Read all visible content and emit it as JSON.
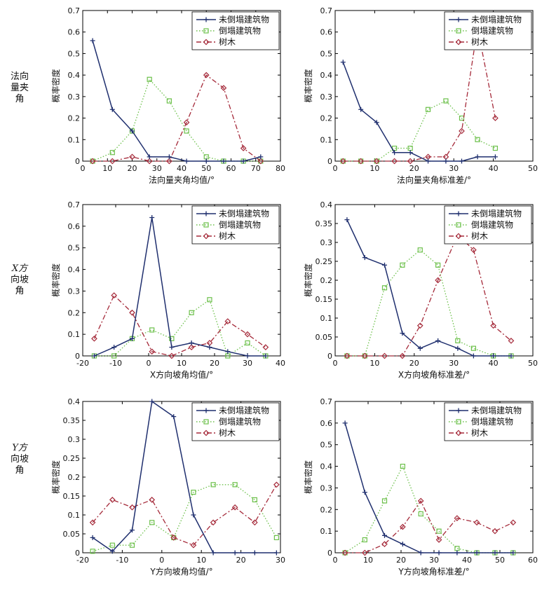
{
  "row_labels": [
    {
      "l1": "法向",
      "l2": "量夹",
      "l3": "角"
    },
    {
      "l1": "X方",
      "l2": "向坡",
      "l3": "角"
    },
    {
      "l1": "Y方",
      "l2": "向坡",
      "l3": "角"
    }
  ],
  "legend": [
    "未倒塌建筑物",
    "倒塌建筑物",
    "树木"
  ],
  "colors": {
    "series1": "#1f2f6e",
    "series2": "#6cc04a",
    "series3": "#a52a3a"
  },
  "chart_data": [
    {
      "type": "line",
      "xlabel": "法向量夹角均值/°",
      "ylabel": "概率密度",
      "xlim": [
        0,
        80
      ],
      "ylim": [
        0,
        0.7
      ],
      "xticks": [
        0,
        10,
        20,
        30,
        40,
        50,
        60,
        70,
        80
      ],
      "yticks": [
        0,
        0.1,
        0.2,
        0.3,
        0.4,
        0.5,
        0.6,
        0.7
      ],
      "grid": false,
      "legend_position": "top-right",
      "series": [
        {
          "name": "未倒塌建筑物",
          "x": [
            4,
            12,
            20,
            27,
            35,
            42,
            50,
            57,
            65,
            72
          ],
          "y": [
            0.56,
            0.24,
            0.14,
            0.02,
            0.02,
            0,
            0,
            0,
            0,
            0.02
          ]
        },
        {
          "name": "倒塌建筑物",
          "x": [
            4,
            12,
            20,
            27,
            35,
            42,
            50,
            57,
            65,
            72
          ],
          "y": [
            0,
            0.04,
            0.14,
            0.38,
            0.28,
            0.14,
            0.02,
            0,
            0,
            0
          ]
        },
        {
          "name": "树木",
          "x": [
            4,
            12,
            20,
            27,
            35,
            42,
            50,
            57,
            65,
            72
          ],
          "y": [
            0,
            0,
            0.02,
            0,
            0,
            0.18,
            0.4,
            0.34,
            0.06,
            0
          ]
        }
      ]
    },
    {
      "type": "line",
      "xlabel": "法向量夹角标准差/°",
      "ylabel": "概率密度",
      "xlim": [
        0,
        50
      ],
      "ylim": [
        0,
        0.7
      ],
      "xticks": [
        0,
        10,
        20,
        30,
        40,
        50
      ],
      "yticks": [
        0,
        0.1,
        0.2,
        0.3,
        0.4,
        0.5,
        0.6,
        0.7
      ],
      "grid": false,
      "legend_position": "top-right",
      "series": [
        {
          "name": "未倒塌建筑物",
          "x": [
            2,
            6.5,
            10.5,
            15,
            19,
            23.5,
            28,
            32,
            36,
            40.5
          ],
          "y": [
            0.46,
            0.24,
            0.18,
            0.04,
            0.04,
            0,
            0,
            0,
            0.02,
            0.02
          ]
        },
        {
          "name": "倒塌建筑物",
          "x": [
            2,
            6.5,
            10.5,
            15,
            19,
            23.5,
            28,
            32,
            36,
            40.5
          ],
          "y": [
            0,
            0,
            0,
            0.06,
            0.06,
            0.24,
            0.28,
            0.2,
            0.1,
            0.06
          ]
        },
        {
          "name": "树木",
          "x": [
            2,
            6.5,
            10.5,
            15,
            19,
            23.5,
            28,
            32,
            36,
            40.5
          ],
          "y": [
            0,
            0,
            0,
            0,
            0,
            0.02,
            0.02,
            0.14,
            0.62,
            0.2
          ]
        }
      ]
    },
    {
      "type": "line",
      "xlabel": "X方向坡角均值/°",
      "ylabel": "概率密度",
      "xlim": [
        -20,
        40
      ],
      "ylim": [
        0,
        0.7
      ],
      "xticks": [
        -20,
        -10,
        0,
        10,
        20,
        30,
        40
      ],
      "yticks": [
        0,
        0.1,
        0.2,
        0.3,
        0.4,
        0.5,
        0.6,
        0.7
      ],
      "grid": false,
      "legend_position": "top-right",
      "series": [
        {
          "name": "未倒塌建筑物",
          "x": [
            -16.5,
            -10.5,
            -5,
            1,
            7,
            13,
            18.5,
            24,
            30,
            35.5
          ],
          "y": [
            0,
            0.04,
            0.08,
            0.64,
            0.04,
            0.06,
            0.04,
            0.02,
            0,
            0
          ]
        },
        {
          "name": "倒塌建筑物",
          "x": [
            -16.5,
            -10.5,
            -5,
            1,
            7,
            13,
            18.5,
            24,
            30,
            35.5
          ],
          "y": [
            0,
            0,
            0.08,
            0.12,
            0.08,
            0.2,
            0.26,
            0,
            0.06,
            0
          ]
        },
        {
          "name": "树木",
          "x": [
            -16.5,
            -10.5,
            -5,
            1,
            7,
            13,
            18.5,
            24,
            30,
            35.5
          ],
          "y": [
            0.08,
            0.28,
            0.2,
            0.02,
            0,
            0.04,
            0.06,
            0.16,
            0.1,
            0.04
          ]
        }
      ]
    },
    {
      "type": "line",
      "xlabel": "X方向坡角标准差/°",
      "ylabel": "概率密度",
      "xlim": [
        0,
        50
      ],
      "ylim": [
        0,
        0.4
      ],
      "xticks": [
        0,
        10,
        20,
        30,
        40,
        50
      ],
      "yticks": [
        0,
        0.05,
        0.1,
        0.15,
        0.2,
        0.25,
        0.3,
        0.35,
        0.4
      ],
      "grid": false,
      "legend_position": "top-right",
      "series": [
        {
          "name": "未倒塌建筑物",
          "x": [
            3,
            7.5,
            12.5,
            17,
            21.5,
            26,
            31,
            35,
            40,
            44.5
          ],
          "y": [
            0.36,
            0.26,
            0.24,
            0.06,
            0.02,
            0.04,
            0.02,
            0,
            0,
            0
          ]
        },
        {
          "name": "倒塌建筑物",
          "x": [
            3,
            7.5,
            12.5,
            17,
            21.5,
            26,
            31,
            35,
            40,
            44.5
          ],
          "y": [
            0,
            0,
            0.18,
            0.24,
            0.28,
            0.24,
            0.04,
            0.02,
            0,
            0
          ]
        },
        {
          "name": "树木",
          "x": [
            3,
            7.5,
            12.5,
            17,
            21.5,
            26,
            31,
            35,
            40,
            44.5
          ],
          "y": [
            0,
            0,
            0,
            0,
            0.08,
            0.2,
            0.32,
            0.28,
            0.08,
            0.04
          ]
        }
      ]
    },
    {
      "type": "line",
      "xlabel": "Y方向坡角均值/°",
      "ylabel": "概率密度",
      "xlim": [
        -20,
        30
      ],
      "ylim": [
        0,
        0.4
      ],
      "xticks": [
        -20,
        -10,
        0,
        10,
        20,
        30
      ],
      "yticks": [
        0,
        0.05,
        0.1,
        0.15,
        0.2,
        0.25,
        0.3,
        0.35,
        0.4
      ],
      "grid": false,
      "legend_position": "top-right",
      "series": [
        {
          "name": "未倒塌建筑物",
          "x": [
            -17.5,
            -12.5,
            -7.5,
            -2.5,
            3,
            8,
            13,
            18.5,
            23.5,
            29
          ],
          "y": [
            0.04,
            0.004,
            0.06,
            0.4,
            0.36,
            0.1,
            0,
            0,
            0,
            0
          ]
        },
        {
          "name": "倒塌建筑物",
          "x": [
            -17.5,
            -12.5,
            -7.5,
            -2.5,
            3,
            8,
            13,
            18.5,
            23.5,
            29
          ],
          "y": [
            0.004,
            0.02,
            0.02,
            0.08,
            0.04,
            0.16,
            0.18,
            0.18,
            0.14,
            0.04
          ]
        },
        {
          "name": "树木",
          "x": [
            -17.5,
            -12.5,
            -7.5,
            -2.5,
            3,
            8,
            13,
            18.5,
            23.5,
            29
          ],
          "y": [
            0.08,
            0.14,
            0.12,
            0.14,
            0.04,
            0.02,
            0.08,
            0.12,
            0.08,
            0.18
          ]
        }
      ]
    },
    {
      "type": "line",
      "xlabel": "Y方向坡角标准差/°",
      "ylabel": "概率密度",
      "xlim": [
        0,
        60
      ],
      "ylim": [
        0,
        0.7
      ],
      "xticks": [
        0,
        10,
        20,
        30,
        40,
        50,
        60
      ],
      "yticks": [
        0,
        0.1,
        0.2,
        0.3,
        0.4,
        0.5,
        0.6,
        0.7
      ],
      "grid": false,
      "legend_position": "top-right",
      "series": [
        {
          "name": "未倒塌建筑物",
          "x": [
            3,
            9,
            15,
            20.5,
            26,
            31.5,
            37,
            43,
            48.5,
            54
          ],
          "y": [
            0.6,
            0.28,
            0.08,
            0.04,
            0,
            0,
            0,
            0,
            0,
            0
          ]
        },
        {
          "name": "倒塌建筑物",
          "x": [
            3,
            9,
            15,
            20.5,
            26,
            31.5,
            37,
            43,
            48.5,
            54
          ],
          "y": [
            0,
            0.06,
            0.24,
            0.4,
            0.18,
            0.1,
            0.02,
            0,
            0,
            0
          ]
        },
        {
          "name": "树木",
          "x": [
            3,
            9,
            15,
            20.5,
            26,
            31.5,
            37,
            43,
            48.5,
            54
          ],
          "y": [
            0,
            0,
            0.04,
            0.12,
            0.24,
            0.06,
            0.16,
            0.14,
            0.1,
            0.14
          ]
        }
      ]
    }
  ]
}
